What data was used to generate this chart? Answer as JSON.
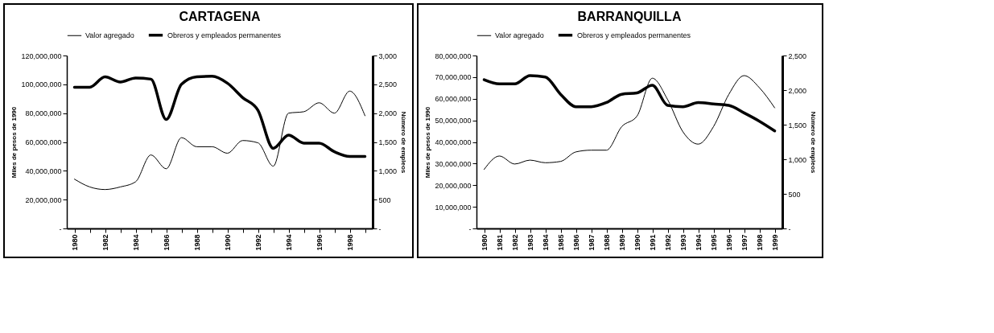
{
  "chart_data": [
    {
      "type": "line",
      "title": "CARTAGENA",
      "ylabel": "Miles de pesos de 1990",
      "y2label": "Número de empleos",
      "legend": "top",
      "categories": [
        "1980",
        null,
        "1982",
        null,
        "1984",
        null,
        "1986",
        null,
        "1988",
        null,
        "1990",
        null,
        "1992",
        null,
        "1994",
        null,
        "1996",
        null,
        "1998",
        null
      ],
      "ylim": [
        0,
        120000000
      ],
      "yticks": [
        {
          "value": 0,
          "label": "-"
        },
        {
          "value": 20000000,
          "label": "20,000,000"
        },
        {
          "value": 40000000,
          "label": "40,000,000"
        },
        {
          "value": 60000000,
          "label": "60,000,000"
        },
        {
          "value": 80000000,
          "label": "80,000,000"
        },
        {
          "value": 100000000,
          "label": "100,000,000"
        },
        {
          "value": 120000000,
          "label": "120,000,000"
        }
      ],
      "y2lim": [
        0,
        3000
      ],
      "y2ticks": [
        {
          "value": 0,
          "label": "-"
        },
        {
          "value": 500,
          "label": "500"
        },
        {
          "value": 1000,
          "label": "1,000"
        },
        {
          "value": 1500,
          "label": "1,500"
        },
        {
          "value": 2000,
          "label": "2,000"
        },
        {
          "value": 2500,
          "label": "2,500"
        },
        {
          "value": 3000,
          "label": "3,000"
        }
      ],
      "series": [
        {
          "name": "Valor agregado",
          "color": "#000000",
          "values": [
            34200000,
            28800000,
            27000000,
            28800000,
            32400000,
            51000000,
            41400000,
            63000000,
            56700000,
            56700000,
            52200000,
            61000000,
            59400000,
            43200000,
            80000000,
            81000000,
            87200000,
            80000000,
            95300000,
            78200000
          ]
        },
        {
          "name": "Obreros y empleados permanentes",
          "color": "#000000",
          "axis": "y2",
          "values": [
            2450,
            2450,
            2630,
            2540,
            2610,
            2590,
            1890,
            2500,
            2630,
            2640,
            2520,
            2270,
            2050,
            1390,
            1620,
            1480,
            1480,
            1330,
            1250,
            1250
          ]
        }
      ]
    },
    {
      "type": "line",
      "title": "BARRANQUILLA",
      "ylabel": "Miles de pesos de 1990",
      "y2label": "Número de empleos",
      "legend": "top",
      "categories": [
        "1980",
        "1981",
        "1982",
        "1983",
        "1984",
        "1985",
        "1986",
        "1987",
        "1988",
        "1989",
        "1990",
        "1991",
        "1992",
        "1993",
        "1994",
        "1995",
        "1996",
        "1997",
        "1998",
        "1999"
      ],
      "ylim": [
        0,
        80000000
      ],
      "yticks": [
        {
          "value": 0,
          "label": "-"
        },
        {
          "value": 10000000,
          "label": "10,000,000"
        },
        {
          "value": 20000000,
          "label": "20,000,000"
        },
        {
          "value": 30000000,
          "label": "30,000,000"
        },
        {
          "value": 40000000,
          "label": "40,000,000"
        },
        {
          "value": 50000000,
          "label": "50,000,000"
        },
        {
          "value": 60000000,
          "label": "60,000,000"
        },
        {
          "value": 70000000,
          "label": "70,000,000"
        },
        {
          "value": 80000000,
          "label": "80,000,000"
        }
      ],
      "y2lim": [
        0,
        2500
      ],
      "y2ticks": [
        {
          "value": 0,
          "label": "-"
        },
        {
          "value": 500,
          "label": "500"
        },
        {
          "value": 1000,
          "label": "1,000"
        },
        {
          "value": 1500,
          "label": "1,500"
        },
        {
          "value": 2000,
          "label": "2,000"
        },
        {
          "value": 2500,
          "label": "2,500"
        }
      ],
      "series": [
        {
          "name": "Valor agregado",
          "color": "#000000",
          "values": [
            27300000,
            33500000,
            29800000,
            31600000,
            30400000,
            31000000,
            35400000,
            36200000,
            36200000,
            47100000,
            52000000,
            69500000,
            59600000,
            44700000,
            39000000,
            47100000,
            62000000,
            70700000,
            65100000,
            55800000
          ]
        },
        {
          "name": "Obreros y empleados permanentes",
          "color": "#000000",
          "axis": "y2",
          "values": [
            2150,
            2090,
            2090,
            2210,
            2190,
            1940,
            1760,
            1760,
            1820,
            1940,
            1960,
            2070,
            1780,
            1760,
            1820,
            1800,
            1780,
            1670,
            1550,
            1410
          ]
        }
      ]
    }
  ]
}
